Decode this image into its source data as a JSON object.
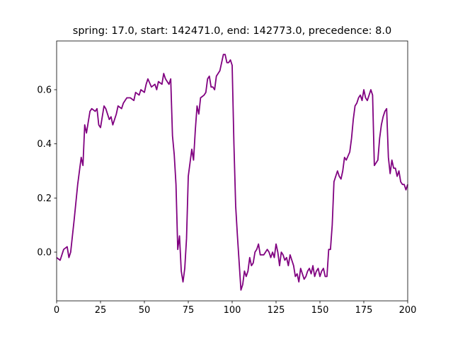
{
  "chart_data": {
    "type": "line",
    "title": "spring: 17.0, start: 142471.0, end: 142773.0, precedence: 8.0",
    "x": [
      0,
      2,
      4,
      6,
      7,
      8,
      10,
      12,
      14,
      15,
      16,
      17,
      18,
      19,
      20,
      22,
      23,
      24,
      25,
      27,
      28,
      30,
      31,
      32,
      34,
      35,
      37,
      38,
      40,
      42,
      44,
      45,
      47,
      48,
      50,
      51,
      52,
      54,
      56,
      57,
      58,
      60,
      61,
      62,
      64,
      65,
      66,
      67,
      68,
      69,
      70,
      71,
      72,
      73,
      74,
      75,
      76,
      77,
      78,
      79,
      80,
      81,
      82,
      84,
      85,
      86,
      87,
      88,
      89,
      90,
      91,
      93,
      94,
      95,
      96,
      97,
      98,
      99,
      100,
      101,
      102,
      103,
      104,
      105,
      106,
      107,
      108,
      109,
      110,
      111,
      112,
      113,
      114,
      115,
      116,
      118,
      120,
      121,
      122,
      123,
      124,
      125,
      126,
      127,
      128,
      129,
      130,
      131,
      132,
      133,
      134,
      135,
      136,
      137,
      138,
      139,
      140,
      141,
      142,
      143,
      144,
      145,
      146,
      147,
      148,
      149,
      150,
      151,
      152,
      153,
      154,
      155,
      156,
      157,
      158,
      160,
      161,
      162,
      163,
      164,
      165,
      167,
      168,
      169,
      170,
      171,
      172,
      173,
      174,
      175,
      176,
      177,
      178,
      179,
      180,
      181,
      182,
      183,
      184,
      185,
      186,
      187,
      188,
      189,
      190,
      191,
      192,
      193,
      194,
      195,
      196,
      197,
      198,
      199,
      200
    ],
    "values": [
      -0.02,
      -0.03,
      0.01,
      0.02,
      -0.02,
      0.0,
      0.12,
      0.25,
      0.35,
      0.32,
      0.47,
      0.44,
      0.48,
      0.52,
      0.53,
      0.52,
      0.53,
      0.47,
      0.46,
      0.54,
      0.53,
      0.49,
      0.5,
      0.47,
      0.51,
      0.54,
      0.53,
      0.55,
      0.57,
      0.57,
      0.56,
      0.59,
      0.58,
      0.6,
      0.59,
      0.62,
      0.64,
      0.61,
      0.62,
      0.6,
      0.63,
      0.62,
      0.66,
      0.64,
      0.62,
      0.64,
      0.43,
      0.36,
      0.25,
      0.01,
      0.06,
      -0.07,
      -0.11,
      -0.06,
      0.05,
      0.28,
      0.33,
      0.38,
      0.34,
      0.45,
      0.54,
      0.51,
      0.57,
      0.58,
      0.59,
      0.64,
      0.65,
      0.61,
      0.61,
      0.6,
      0.65,
      0.67,
      0.7,
      0.73,
      0.73,
      0.7,
      0.7,
      0.71,
      0.69,
      0.4,
      0.17,
      0.06,
      -0.04,
      -0.14,
      -0.12,
      -0.07,
      -0.09,
      -0.07,
      -0.02,
      -0.05,
      -0.04,
      0.0,
      0.01,
      0.03,
      -0.01,
      -0.01,
      0.01,
      0.0,
      -0.02,
      0.0,
      -0.02,
      0.03,
      0.0,
      -0.05,
      0.0,
      -0.01,
      -0.03,
      -0.02,
      -0.05,
      -0.01,
      -0.03,
      -0.05,
      -0.09,
      -0.08,
      -0.11,
      -0.06,
      -0.08,
      -0.1,
      -0.09,
      -0.07,
      -0.06,
      -0.08,
      -0.05,
      -0.09,
      -0.07,
      -0.06,
      -0.09,
      -0.07,
      -0.06,
      -0.09,
      -0.09,
      0.01,
      0.01,
      0.1,
      0.26,
      0.3,
      0.28,
      0.27,
      0.3,
      0.35,
      0.34,
      0.37,
      0.42,
      0.49,
      0.54,
      0.55,
      0.57,
      0.58,
      0.56,
      0.6,
      0.57,
      0.56,
      0.58,
      0.6,
      0.58,
      0.32,
      0.33,
      0.34,
      0.42,
      0.47,
      0.5,
      0.52,
      0.53,
      0.35,
      0.29,
      0.34,
      0.31,
      0.31,
      0.28,
      0.3,
      0.26,
      0.25,
      0.25,
      0.23,
      0.25
    ],
    "color": "#800080",
    "xlim": [
      0,
      200
    ],
    "xticks": [
      0,
      25,
      50,
      75,
      100,
      125,
      150,
      175,
      200
    ],
    "ylim": [
      -0.18,
      0.78
    ],
    "yticks": [
      {
        "value": 0,
        "label": "0.0"
      },
      0.2,
      0.4,
      0.6
    ]
  }
}
